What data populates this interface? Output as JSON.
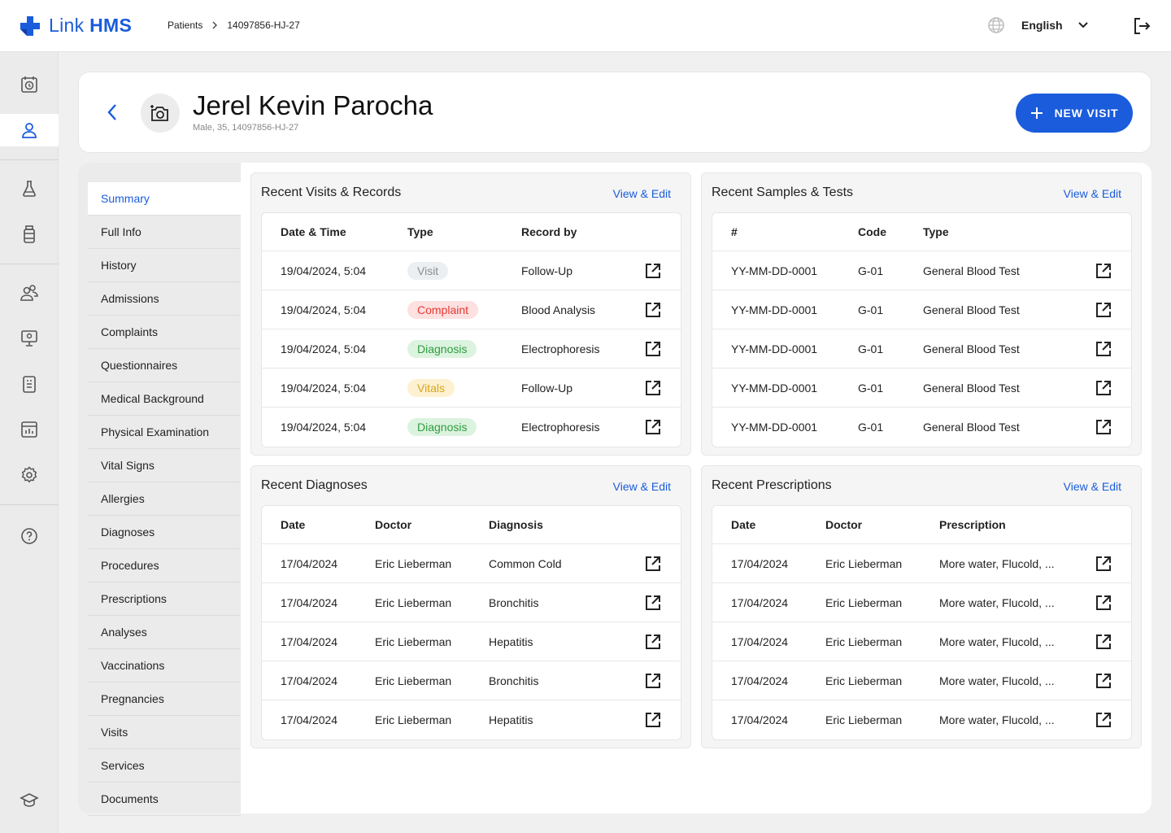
{
  "app": {
    "logo_text_a": "Link",
    "logo_text_b": "HMS"
  },
  "breadcrumb": {
    "items": [
      "Patients",
      "14097856-HJ-27"
    ]
  },
  "language": {
    "current": "English"
  },
  "patient": {
    "name": "Jerel Kevin Parocha",
    "meta": "Male, 35, 14097856-HJ-27"
  },
  "actions": {
    "new_visit": "NEW VISIT"
  },
  "subnav": {
    "items": [
      "Summary",
      "Full Info",
      "History",
      "Admissions",
      "Complaints",
      "Questionnaires",
      "Medical Background",
      "Physical Examination",
      "Vital Signs",
      "Allergies",
      "Diagnoses",
      "Procedures",
      "Prescriptions",
      "Analyses",
      "Vaccinations",
      "Pregnancies",
      "Visits",
      "Services",
      "Documents"
    ]
  },
  "visits": {
    "title": "Recent Visits & Records",
    "link": "View & Edit",
    "headers": [
      "Date & Time",
      "Type",
      "Record by"
    ],
    "rows": [
      {
        "date": "19/04/2024, 5:04",
        "type": "Visit",
        "record": "Follow-Up",
        "tone": "grey"
      },
      {
        "date": "19/04/2024, 5:04",
        "type": "Complaint",
        "record": "Blood Analysis",
        "tone": "red"
      },
      {
        "date": "19/04/2024, 5:04",
        "type": "Diagnosis",
        "record": "Electrophoresis",
        "tone": "green"
      },
      {
        "date": "19/04/2024, 5:04",
        "type": "Vitals",
        "record": "Follow-Up",
        "tone": "yellow"
      },
      {
        "date": "19/04/2024, 5:04",
        "type": "Diagnosis",
        "record": "Electrophoresis",
        "tone": "green"
      }
    ]
  },
  "samples": {
    "title": "Recent Samples & Tests",
    "link": "View & Edit",
    "headers": [
      "#",
      "Code",
      "Type"
    ],
    "rows": [
      {
        "id": "YY-MM-DD-0001",
        "code": "G-01",
        "type": "General Blood Test"
      },
      {
        "id": "YY-MM-DD-0001",
        "code": "G-01",
        "type": "General Blood Test"
      },
      {
        "id": "YY-MM-DD-0001",
        "code": "G-01",
        "type": "General Blood Test"
      },
      {
        "id": "YY-MM-DD-0001",
        "code": "G-01",
        "type": "General Blood Test"
      },
      {
        "id": "YY-MM-DD-0001",
        "code": "G-01",
        "type": "General Blood Test"
      }
    ]
  },
  "diagnoses": {
    "title": "Recent Diagnoses",
    "link": "View & Edit",
    "headers": [
      "Date",
      "Doctor",
      "Diagnosis"
    ],
    "rows": [
      {
        "date": "17/04/2024",
        "doctor": "Eric Lieberman",
        "diagnosis": "Common Cold"
      },
      {
        "date": "17/04/2024",
        "doctor": "Eric Lieberman",
        "diagnosis": "Bronchitis"
      },
      {
        "date": "17/04/2024",
        "doctor": "Eric Lieberman",
        "diagnosis": "Hepatitis"
      },
      {
        "date": "17/04/2024",
        "doctor": "Eric Lieberman",
        "diagnosis": "Bronchitis"
      },
      {
        "date": "17/04/2024",
        "doctor": "Eric Lieberman",
        "diagnosis": "Hepatitis"
      }
    ]
  },
  "prescriptions": {
    "title": "Recent Prescriptions",
    "link": "View & Edit",
    "headers": [
      "Date",
      "Doctor",
      "Prescription"
    ],
    "rows": [
      {
        "date": "17/04/2024",
        "doctor": "Eric Lieberman",
        "prescription": "More water, Flucold, ..."
      },
      {
        "date": "17/04/2024",
        "doctor": "Eric Lieberman",
        "prescription": "More water, Flucold, ..."
      },
      {
        "date": "17/04/2024",
        "doctor": "Eric Lieberman",
        "prescription": "More water, Flucold, ..."
      },
      {
        "date": "17/04/2024",
        "doctor": "Eric Lieberman",
        "prescription": "More water, Flucold, ..."
      },
      {
        "date": "17/04/2024",
        "doctor": "Eric Lieberman",
        "prescription": "More water, Flucold, ..."
      }
    ]
  },
  "colors": {
    "accent": "#1a5cdc",
    "badge_grey_bg": "#eceff1",
    "badge_grey_fg": "#8a8f94",
    "badge_red_bg": "#fde0e0",
    "badge_red_fg": "#e53935",
    "badge_green_bg": "#dcf3df",
    "badge_green_fg": "#2e9d3e",
    "badge_yellow_bg": "#fdf1d2",
    "badge_yellow_fg": "#d9a418"
  },
  "icons": {
    "logo": "plus-cross-logo-icon",
    "globe": "globe-icon",
    "chevron": "chevron-down-icon",
    "logout": "logout-icon",
    "back": "chevron-left-icon",
    "avatar": "camera-add-icon",
    "new_visit": "plus-icon",
    "row_action": "external-link-icon",
    "rail": [
      "calendar-clock-icon",
      "user-icon",
      "flask-icon",
      "bottle-icon",
      "users-icon",
      "monitor-icon",
      "clipboard-icon",
      "report-icon",
      "gear-icon",
      "help-icon",
      "graduation-cap-icon"
    ]
  }
}
